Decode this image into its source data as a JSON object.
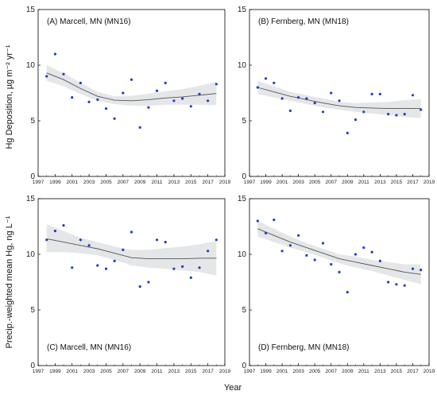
{
  "figure": {
    "xlabel": "Year",
    "ylabel_top": "Hg Deposition, µg m⁻² yr⁻¹",
    "ylabel_bottom": "Precip.-weighted mean Hg, ng L⁻¹"
  },
  "colors": {
    "points": "#1f3fbf",
    "trend": "#555555",
    "band": "#e4e6e8",
    "axis": "#000000"
  },
  "chart_data": [
    {
      "type": "scatter",
      "title": "(A) Marcell, MN (MN16)",
      "xlim": [
        1997,
        2019
      ],
      "ylim": [
        0,
        15
      ],
      "xticks": [
        "1997",
        "1999",
        "2001",
        "2003",
        "2005",
        "2007",
        "2009",
        "2011",
        "2013",
        "2015",
        "2017",
        "2019"
      ],
      "yticks": [
        "0",
        "5",
        "10",
        "15"
      ],
      "points": {
        "x": [
          1998,
          1999,
          2000,
          2001,
          2002,
          2003,
          2004,
          2005,
          2006,
          2007,
          2008,
          2009,
          2010,
          2011,
          2012,
          2013,
          2014,
          2015,
          2016,
          2017,
          2018
        ],
        "y": [
          9.0,
          11.0,
          9.2,
          7.1,
          8.4,
          6.7,
          6.9,
          6.1,
          5.2,
          7.5,
          8.7,
          4.4,
          6.2,
          7.7,
          8.4,
          6.8,
          7.0,
          6.3,
          7.4,
          6.8,
          8.3
        ]
      },
      "trend": {
        "x": [
          1998,
          2000,
          2002,
          2004,
          2006,
          2008,
          2010,
          2012,
          2014,
          2016,
          2018
        ],
        "y": [
          9.3,
          8.7,
          7.9,
          7.2,
          6.85,
          6.8,
          6.9,
          7.05,
          7.15,
          7.3,
          7.45
        ],
        "lower": [
          8.6,
          8.1,
          7.4,
          6.8,
          6.5,
          6.35,
          6.35,
          6.45,
          6.45,
          6.45,
          6.4
        ],
        "upper": [
          10.0,
          9.3,
          8.4,
          7.6,
          7.2,
          7.25,
          7.45,
          7.65,
          7.85,
          8.15,
          8.5
        ]
      }
    },
    {
      "type": "scatter",
      "title": "(B) Fernberg, MN (MN18)",
      "xlim": [
        1997,
        2019
      ],
      "ylim": [
        0,
        15
      ],
      "xticks": [
        "1997",
        "1999",
        "2001",
        "2003",
        "2005",
        "2007",
        "2009",
        "2011",
        "2013",
        "2015",
        "2017",
        "2019"
      ],
      "yticks": [
        "0",
        "5",
        "10",
        "15"
      ],
      "points": {
        "x": [
          1998,
          1999,
          2000,
          2001,
          2002,
          2003,
          2004,
          2005,
          2006,
          2007,
          2008,
          2009,
          2010,
          2011,
          2012,
          2013,
          2014,
          2015,
          2016,
          2017,
          2018
        ],
        "y": [
          8.0,
          8.8,
          8.4,
          7.0,
          5.9,
          7.1,
          7.0,
          6.6,
          5.8,
          7.5,
          6.8,
          3.9,
          5.1,
          5.8,
          7.4,
          7.4,
          5.6,
          5.5,
          5.6,
          7.3,
          6.0
        ]
      },
      "trend": {
        "x": [
          1998,
          2000,
          2002,
          2004,
          2006,
          2008,
          2010,
          2012,
          2014,
          2016,
          2018
        ],
        "y": [
          8.0,
          7.6,
          7.2,
          6.9,
          6.6,
          6.35,
          6.2,
          6.15,
          6.1,
          6.1,
          6.1
        ],
        "lower": [
          7.4,
          7.1,
          6.8,
          6.5,
          6.2,
          6.0,
          5.8,
          5.65,
          5.5,
          5.35,
          5.25
        ],
        "upper": [
          8.6,
          8.1,
          7.6,
          7.3,
          7.0,
          6.7,
          6.6,
          6.65,
          6.7,
          6.85,
          6.95
        ]
      }
    },
    {
      "type": "scatter",
      "title": "(C) Marcell, MN (MN16)",
      "xlim": [
        1997,
        2019
      ],
      "ylim": [
        0,
        15
      ],
      "xticks": [
        "1997",
        "1999",
        "2001",
        "2003",
        "2005",
        "2007",
        "2009",
        "2011",
        "2013",
        "2015",
        "2017",
        "2019"
      ],
      "yticks": [
        "0",
        "5",
        "10",
        "15"
      ],
      "points": {
        "x": [
          1998,
          1999,
          2000,
          2001,
          2002,
          2003,
          2004,
          2005,
          2006,
          2007,
          2008,
          2009,
          2010,
          2011,
          2012,
          2013,
          2014,
          2015,
          2016,
          2017,
          2018
        ],
        "y": [
          11.3,
          12.1,
          12.6,
          8.8,
          11.3,
          10.8,
          9.0,
          8.7,
          9.4,
          10.4,
          12.0,
          7.1,
          7.5,
          11.3,
          11.1,
          8.7,
          8.9,
          7.9,
          8.8,
          10.3,
          11.3
        ]
      },
      "trend": {
        "x": [
          1998,
          2000,
          2002,
          2004,
          2006,
          2008,
          2010,
          2012,
          2014,
          2016,
          2018
        ],
        "y": [
          11.4,
          11.1,
          10.8,
          10.5,
          10.1,
          9.7,
          9.6,
          9.6,
          9.6,
          9.65,
          9.65
        ],
        "lower": [
          10.2,
          10.2,
          10.1,
          9.9,
          9.5,
          9.0,
          8.8,
          8.7,
          8.55,
          8.4,
          8.1
        ],
        "upper": [
          12.7,
          12.1,
          11.5,
          11.1,
          10.7,
          10.4,
          10.4,
          10.55,
          10.7,
          10.9,
          11.2
        ]
      }
    },
    {
      "type": "scatter",
      "title": "(D) Fernberg, MN (MN18)",
      "xlim": [
        1997,
        2019
      ],
      "ylim": [
        0,
        15
      ],
      "xticks": [
        "1997",
        "1999",
        "2001",
        "2003",
        "2005",
        "2007",
        "2009",
        "2011",
        "2013",
        "2015",
        "2017",
        "2019"
      ],
      "yticks": [
        "0",
        "5",
        "10",
        "15"
      ],
      "points": {
        "x": [
          1998,
          1999,
          2000,
          2001,
          2002,
          2003,
          2004,
          2005,
          2006,
          2007,
          2008,
          2009,
          2010,
          2011,
          2012,
          2013,
          2014,
          2015,
          2016,
          2017,
          2018
        ],
        "y": [
          13.0,
          11.9,
          13.1,
          10.3,
          10.8,
          11.7,
          9.9,
          9.5,
          11.0,
          9.1,
          8.4,
          6.6,
          10.0,
          10.6,
          10.2,
          9.4,
          7.5,
          7.3,
          7.2,
          8.7,
          8.6
        ]
      },
      "trend": {
        "x": [
          1998,
          2000,
          2002,
          2004,
          2006,
          2008,
          2010,
          2012,
          2014,
          2016,
          2018
        ],
        "y": [
          12.3,
          11.7,
          11.1,
          10.6,
          10.1,
          9.6,
          9.3,
          9.0,
          8.7,
          8.4,
          8.2
        ],
        "lower": [
          11.6,
          11.1,
          10.6,
          10.2,
          9.7,
          9.2,
          8.8,
          8.5,
          8.1,
          7.7,
          7.3
        ],
        "upper": [
          13.0,
          12.3,
          11.6,
          11.0,
          10.5,
          10.0,
          9.8,
          9.5,
          9.3,
          9.1,
          9.1
        ]
      }
    }
  ]
}
